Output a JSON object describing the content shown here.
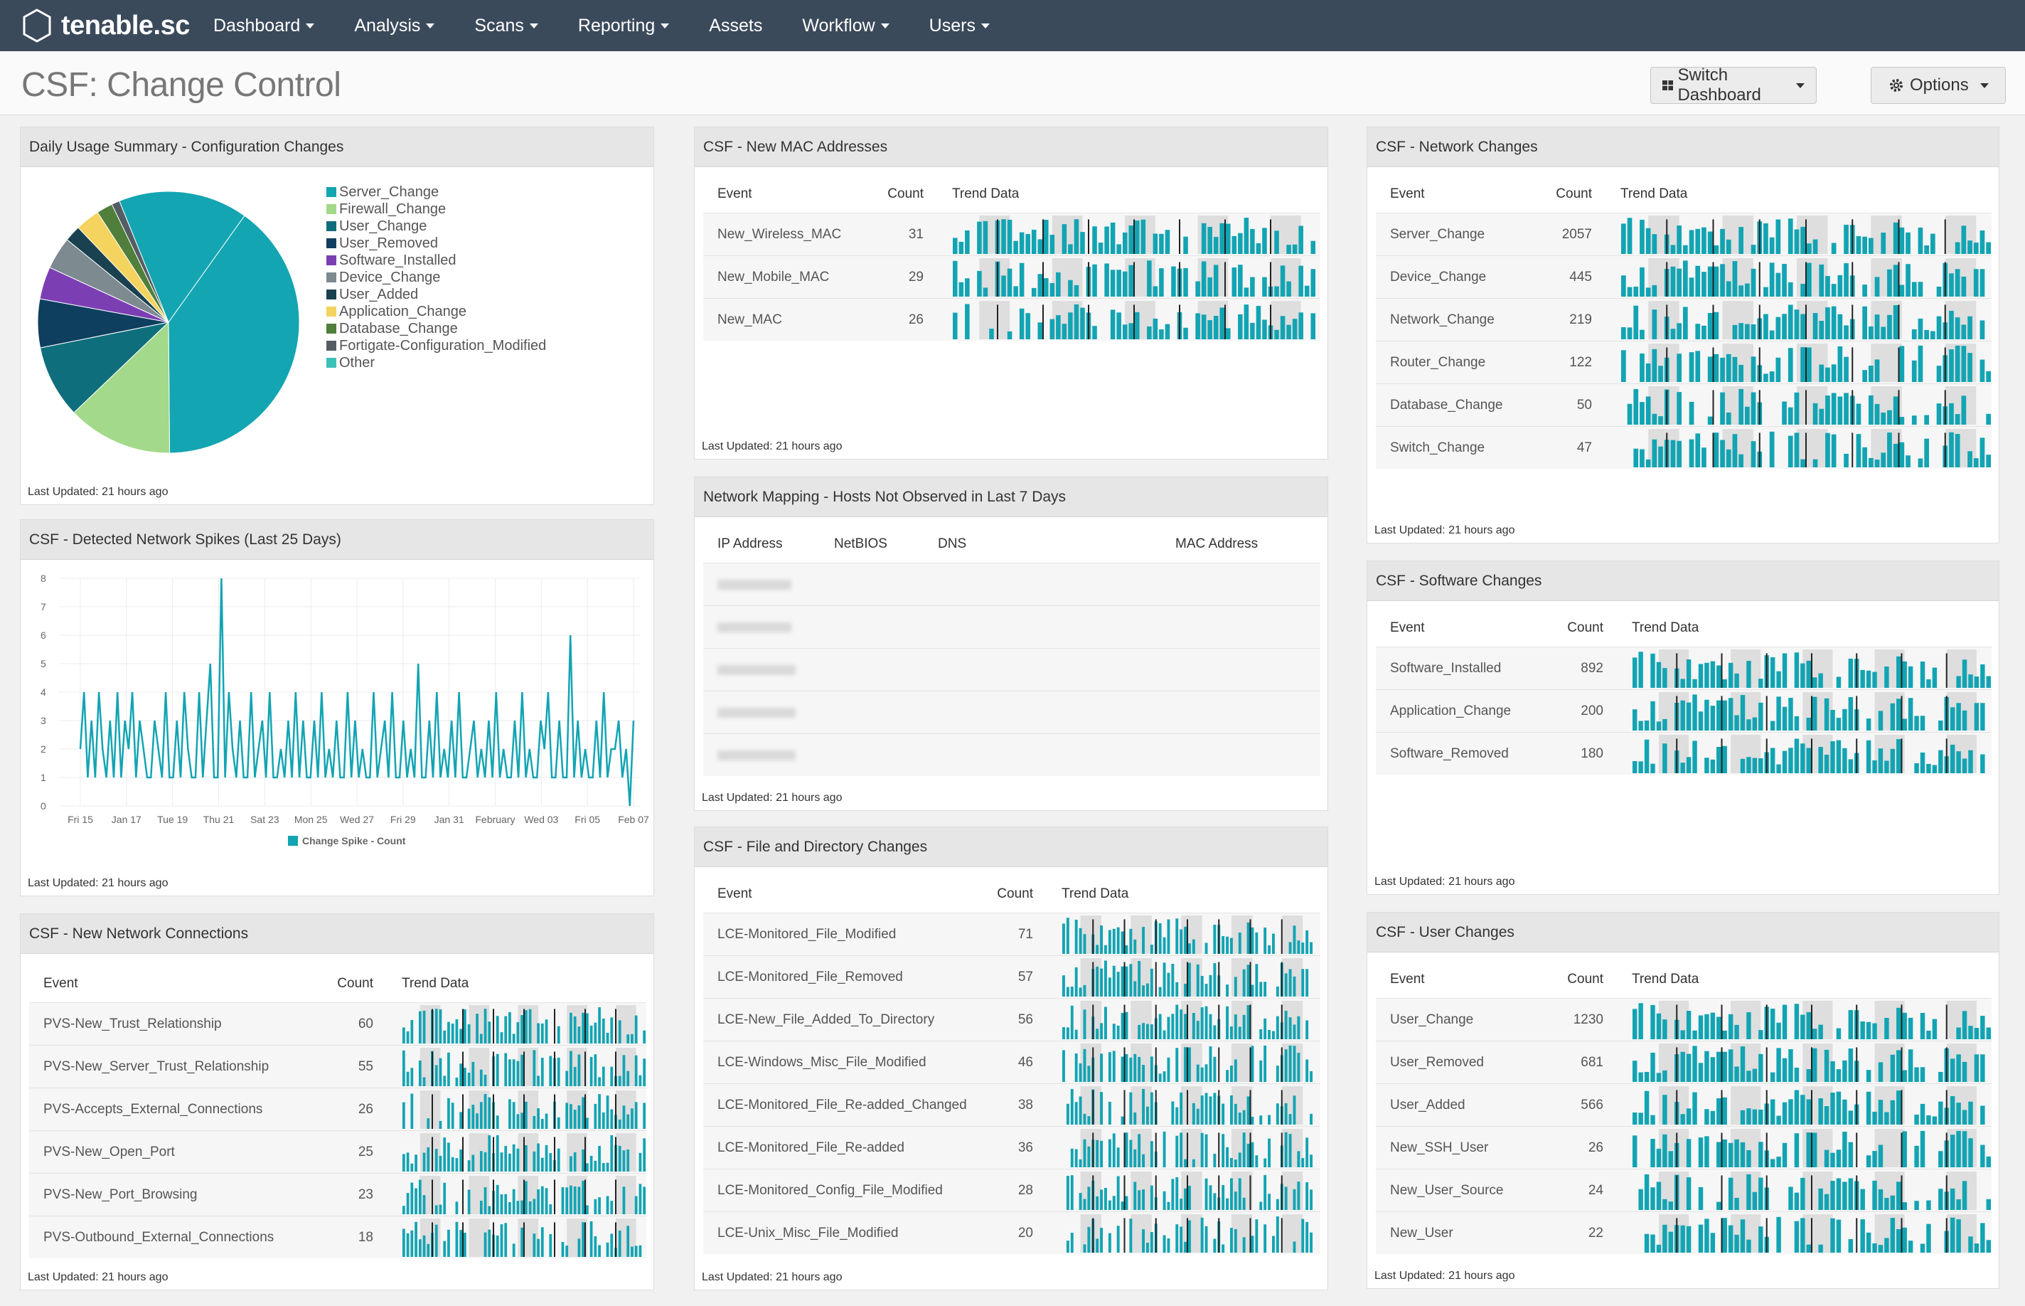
{
  "app": {
    "logo_text": "tenable.sc",
    "nav": [
      {
        "label": "Dashboard",
        "caret": true
      },
      {
        "label": "Analysis",
        "caret": true
      },
      {
        "label": "Scans",
        "caret": true
      },
      {
        "label": "Reporting",
        "caret": true
      },
      {
        "label": "Assets",
        "caret": false
      },
      {
        "label": "Workflow",
        "caret": true
      },
      {
        "label": "Users",
        "caret": true
      }
    ]
  },
  "header": {
    "title": "CSF: Change Control",
    "switch_dashboard": "Switch Dashboard",
    "options": "Options"
  },
  "colors": {
    "nav_bg": "#3b4a5b",
    "teal": "#12a4b3",
    "trend_gray": "#dedede"
  },
  "panels": {
    "daily_usage": {
      "title": "Daily Usage Summary - Configuration Changes",
      "footer": "Last Updated: 21 hours ago",
      "legend": [
        {
          "label": "Server_Change",
          "color": "#13a5b2"
        },
        {
          "label": "Firewall_Change",
          "color": "#a3d98a"
        },
        {
          "label": "User_Change",
          "color": "#0f6e7c"
        },
        {
          "label": "User_Removed",
          "color": "#0f3f5f"
        },
        {
          "label": "Software_Installed",
          "color": "#7c3fb3"
        },
        {
          "label": "Device_Change",
          "color": "#7d8a90"
        },
        {
          "label": "User_Added",
          "color": "#19414f"
        },
        {
          "label": "Application_Change",
          "color": "#f4d35e"
        },
        {
          "label": "Database_Change",
          "color": "#4f7f3a"
        },
        {
          "label": "Fortigate-Configuration_Modified",
          "color": "#545d63"
        },
        {
          "label": "Other",
          "color": "#3bc0b8"
        }
      ]
    },
    "network_spikes": {
      "title": "CSF - Detected Network Spikes (Last 25 Days)",
      "footer": "Last Updated: 21 hours ago"
    },
    "new_network_connections": {
      "title": "CSF - New Network Connections",
      "footer": "Last Updated: 21 hours ago",
      "col_event": "Event",
      "col_count": "Count",
      "col_trend": "Trend Data",
      "rows": [
        {
          "event": "PVS-New_Trust_Relationship",
          "count": "60"
        },
        {
          "event": "PVS-New_Server_Trust_Relationship",
          "count": "55"
        },
        {
          "event": "PVS-Accepts_External_Connections",
          "count": "26"
        },
        {
          "event": "PVS-New_Open_Port",
          "count": "25"
        },
        {
          "event": "PVS-New_Port_Browsing",
          "count": "23"
        },
        {
          "event": "PVS-Outbound_External_Connections",
          "count": "18"
        }
      ]
    },
    "new_mac": {
      "title": "CSF - New MAC Addresses",
      "footer": "Last Updated: 21 hours ago",
      "col_event": "Event",
      "col_count": "Count",
      "col_trend": "Trend Data",
      "rows": [
        {
          "event": "New_Wireless_MAC",
          "count": "31"
        },
        {
          "event": "New_Mobile_MAC",
          "count": "29"
        },
        {
          "event": "New_MAC",
          "count": "26"
        }
      ]
    },
    "network_mapping": {
      "title": "Network Mapping - Hosts Not Observed in Last 7 Days",
      "footer": "Last Updated: 21 hours ago",
      "col_ip": "IP Address",
      "col_netbios": "NetBIOS",
      "col_dns": "DNS",
      "col_mac": "MAC Address"
    },
    "file_dir": {
      "title": "CSF - File and Directory Changes",
      "footer": "Last Updated: 21 hours ago",
      "col_event": "Event",
      "col_count": "Count",
      "col_trend": "Trend Data",
      "rows": [
        {
          "event": "LCE-Monitored_File_Modified",
          "count": "71"
        },
        {
          "event": "LCE-Monitored_File_Removed",
          "count": "57"
        },
        {
          "event": "LCE-New_File_Added_To_Directory",
          "count": "56"
        },
        {
          "event": "LCE-Windows_Misc_File_Modified",
          "count": "46"
        },
        {
          "event": "LCE-Monitored_File_Re-added_Changed",
          "count": "38"
        },
        {
          "event": "LCE-Monitored_File_Re-added",
          "count": "36"
        },
        {
          "event": "LCE-Monitored_Config_File_Modified",
          "count": "28"
        },
        {
          "event": "LCE-Unix_Misc_File_Modified",
          "count": "20"
        }
      ]
    },
    "network_changes": {
      "title": "CSF - Network Changes",
      "footer": "Last Updated: 21 hours ago",
      "col_event": "Event",
      "col_count": "Count",
      "col_trend": "Trend Data",
      "rows": [
        {
          "event": "Server_Change",
          "count": "2057"
        },
        {
          "event": "Device_Change",
          "count": "445"
        },
        {
          "event": "Network_Change",
          "count": "219"
        },
        {
          "event": "Router_Change",
          "count": "122"
        },
        {
          "event": "Database_Change",
          "count": "50"
        },
        {
          "event": "Switch_Change",
          "count": "47"
        }
      ]
    },
    "software_changes": {
      "title": "CSF - Software Changes",
      "footer": "Last Updated: 21 hours ago",
      "col_event": "Event",
      "col_count": "Count",
      "col_trend": "Trend Data",
      "rows": [
        {
          "event": "Software_Installed",
          "count": "892"
        },
        {
          "event": "Application_Change",
          "count": "200"
        },
        {
          "event": "Software_Removed",
          "count": "180"
        }
      ]
    },
    "user_changes": {
      "title": "CSF - User Changes",
      "footer": "Last Updated: 21 hours ago",
      "col_event": "Event",
      "col_count": "Count",
      "col_trend": "Trend Data",
      "rows": [
        {
          "event": "User_Change",
          "count": "1230"
        },
        {
          "event": "User_Removed",
          "count": "681"
        },
        {
          "event": "User_Added",
          "count": "566"
        },
        {
          "event": "New_SSH_User",
          "count": "26"
        },
        {
          "event": "New_User_Source",
          "count": "24"
        },
        {
          "event": "New_User",
          "count": "22"
        }
      ]
    }
  },
  "chart_data": [
    {
      "type": "pie",
      "title": "",
      "categories": [
        "Server_Change",
        "Firewall_Change",
        "User_Change",
        "User_Removed",
        "Software_Installed",
        "Device_Change",
        "User_Added",
        "Application_Change",
        "Database_Change",
        "Fortigate-Configuration_Modified",
        "Other"
      ],
      "values": [
        40,
        13,
        9,
        6,
        4,
        4,
        2,
        3,
        2,
        1,
        16
      ],
      "colors": [
        "#13a5b2",
        "#a3d98a",
        "#0f6e7c",
        "#0f3f5f",
        "#7c3fb3",
        "#7d8a90",
        "#19414f",
        "#f4d35e",
        "#4f7f3a",
        "#545d63",
        "#13a5b2"
      ],
      "legend_position": "right"
    },
    {
      "type": "line",
      "title": "",
      "y_ticks": [
        "0",
        "1",
        "2",
        "3",
        "4",
        "5",
        "6",
        "7",
        "8"
      ],
      "ylim": [
        0,
        8
      ],
      "x_tick_labels": [
        "Fri 15",
        "Jan 17",
        "Tue 19",
        "Thu 21",
        "Sat 23",
        "Mon 25",
        "Wed 27",
        "Fri 29",
        "Jan 31",
        "February",
        "Wed 03",
        "Fri 05",
        "Feb 07"
      ],
      "grid": true,
      "series": [
        {
          "name": "Change Spike - Count",
          "color": "#12a4b3",
          "values": [
            2,
            4,
            1,
            3,
            1,
            4,
            2,
            1,
            3,
            1,
            4,
            1,
            3,
            2,
            4,
            1,
            3,
            2,
            1,
            1,
            3,
            2,
            1,
            4,
            1,
            1,
            3,
            1,
            4,
            2,
            1,
            1,
            4,
            1,
            3,
            5,
            1,
            1,
            8,
            1,
            4,
            2,
            1,
            3,
            1,
            1,
            4,
            1,
            2,
            3,
            1,
            4,
            1,
            1,
            2,
            1,
            3,
            1,
            4,
            1,
            3,
            1,
            1,
            3,
            1,
            4,
            1,
            2,
            1,
            3,
            1,
            1,
            4,
            1,
            3,
            1,
            2,
            1,
            1,
            4,
            1,
            2,
            3,
            1,
            4,
            1,
            1,
            3,
            1,
            2,
            1,
            5,
            1,
            1,
            3,
            1,
            4,
            1,
            2,
            1,
            3,
            1,
            4,
            1,
            1,
            2,
            3,
            1,
            2,
            1,
            3,
            1,
            4,
            1,
            2,
            1,
            1,
            3,
            1,
            4,
            1,
            2,
            1,
            1,
            3,
            2,
            4,
            1,
            1,
            3,
            1,
            1,
            6,
            1,
            3,
            1,
            2,
            1,
            1,
            3,
            1,
            4,
            1,
            2,
            2,
            3,
            1,
            2,
            0,
            3
          ]
        }
      ]
    }
  ]
}
